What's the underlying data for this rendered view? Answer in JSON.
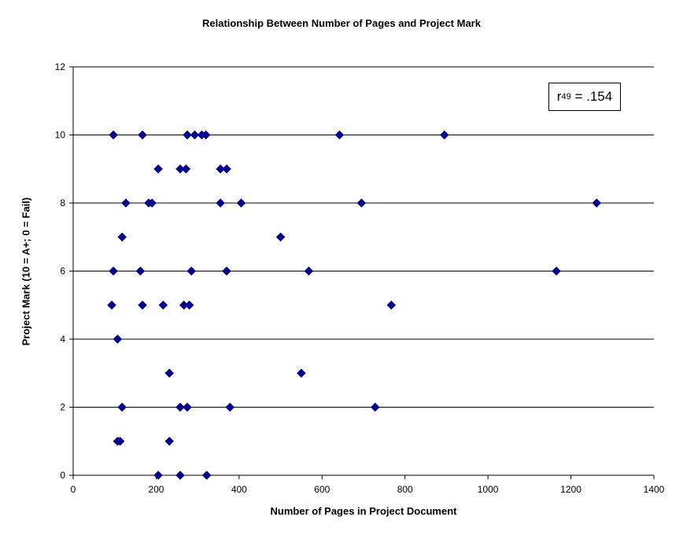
{
  "chart_data": {
    "type": "scatter",
    "title": "Relationship Between Number of Pages and Project Mark",
    "xlabel": "Number of Pages in Project Document",
    "ylabel": "Project Mark (10 = A+; 0 = Fail)",
    "xlim": [
      0,
      1400
    ],
    "ylim": [
      0,
      12
    ],
    "xticks": [
      0,
      200,
      400,
      600,
      800,
      1000,
      1200,
      1400
    ],
    "yticks": [
      0,
      2,
      4,
      6,
      8,
      10,
      12
    ],
    "grid": "horizontal",
    "marker_color": "#00008B",
    "annotation": {
      "prefix": "r",
      "subscript": "49",
      "value": " = .154"
    },
    "points": [
      {
        "x": 97,
        "y": 10
      },
      {
        "x": 167,
        "y": 10
      },
      {
        "x": 275,
        "y": 10
      },
      {
        "x": 293,
        "y": 10
      },
      {
        "x": 310,
        "y": 10
      },
      {
        "x": 320,
        "y": 10
      },
      {
        "x": 642,
        "y": 10
      },
      {
        "x": 895,
        "y": 10
      },
      {
        "x": 205,
        "y": 9
      },
      {
        "x": 258,
        "y": 9
      },
      {
        "x": 272,
        "y": 9
      },
      {
        "x": 355,
        "y": 9
      },
      {
        "x": 370,
        "y": 9
      },
      {
        "x": 127,
        "y": 8
      },
      {
        "x": 182,
        "y": 8
      },
      {
        "x": 190,
        "y": 8
      },
      {
        "x": 355,
        "y": 8
      },
      {
        "x": 405,
        "y": 8
      },
      {
        "x": 695,
        "y": 8
      },
      {
        "x": 1262,
        "y": 8
      },
      {
        "x": 118,
        "y": 7
      },
      {
        "x": 500,
        "y": 7
      },
      {
        "x": 97,
        "y": 6
      },
      {
        "x": 162,
        "y": 6
      },
      {
        "x": 285,
        "y": 6
      },
      {
        "x": 370,
        "y": 6
      },
      {
        "x": 568,
        "y": 6
      },
      {
        "x": 1165,
        "y": 6
      },
      {
        "x": 93,
        "y": 5
      },
      {
        "x": 167,
        "y": 5
      },
      {
        "x": 217,
        "y": 5
      },
      {
        "x": 267,
        "y": 5
      },
      {
        "x": 280,
        "y": 5
      },
      {
        "x": 767,
        "y": 5
      },
      {
        "x": 107,
        "y": 4
      },
      {
        "x": 232,
        "y": 3
      },
      {
        "x": 550,
        "y": 3
      },
      {
        "x": 118,
        "y": 2
      },
      {
        "x": 258,
        "y": 2
      },
      {
        "x": 275,
        "y": 2
      },
      {
        "x": 378,
        "y": 2
      },
      {
        "x": 728,
        "y": 2
      },
      {
        "x": 107,
        "y": 1
      },
      {
        "x": 113,
        "y": 1
      },
      {
        "x": 232,
        "y": 1
      },
      {
        "x": 205,
        "y": 0
      },
      {
        "x": 258,
        "y": 0
      },
      {
        "x": 322,
        "y": 0
      }
    ]
  }
}
